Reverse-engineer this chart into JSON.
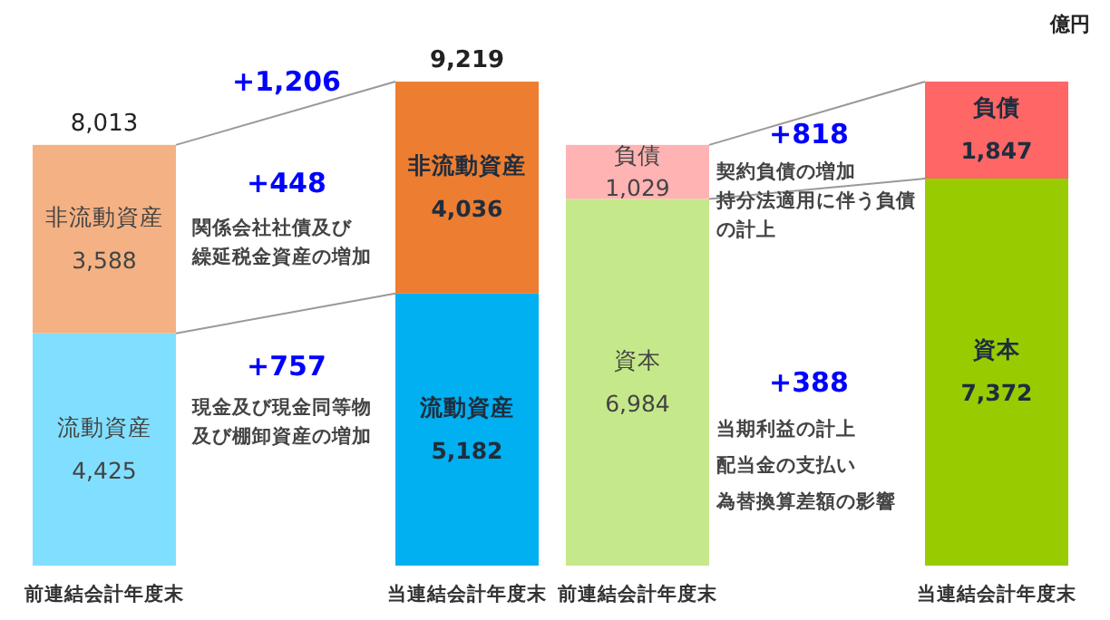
{
  "chart_data": {
    "type": "bar",
    "stacked": true,
    "categories": [
      "前連結会計年度末",
      "当連結会計年度末",
      "前連結会計年度末",
      "当連結会計年度末"
    ],
    "series": [
      {
        "name": "流動資産",
        "colors": [
          "#80dfff",
          "#00b0f0",
          null,
          null
        ],
        "values": [
          4425,
          5182,
          null,
          null
        ],
        "value_labels": [
          "4,425",
          "5,182",
          null,
          null
        ]
      },
      {
        "name": "非流動資産",
        "colors": [
          "#f4b183",
          "#ed7d31",
          null,
          null
        ],
        "values": [
          3588,
          4036,
          null,
          null
        ],
        "value_labels": [
          "3,588",
          "4,036",
          null,
          null
        ]
      },
      {
        "name": "資本",
        "colors": [
          null,
          null,
          "#c5e88a",
          "#99cc00"
        ],
        "values": [
          null,
          null,
          6984,
          7372
        ],
        "value_labels": [
          null,
          null,
          "6,984",
          "7,372"
        ]
      },
      {
        "name": "負債",
        "colors": [
          null,
          null,
          "#ffb3b3",
          "#ff6666"
        ],
        "values": [
          null,
          null,
          1029,
          1847
        ],
        "value_labels": [
          null,
          null,
          "1,029",
          "1,847"
        ]
      }
    ],
    "totals": [
      "8,013",
      "9,219",
      null,
      null
    ],
    "annotations": [
      "億円",
      "+1,206",
      "+448",
      "関係会社社債及び繰延税金資産の増加",
      "+757",
      "現金及び現金同等物及び棚卸資産の増加",
      "+818",
      "契約負債の増加",
      "持分法適用に伴う負債の計上",
      "+388",
      "当期利益の計上",
      "配当金の支払い",
      "為替換算差額の影響"
    ]
  }
}
